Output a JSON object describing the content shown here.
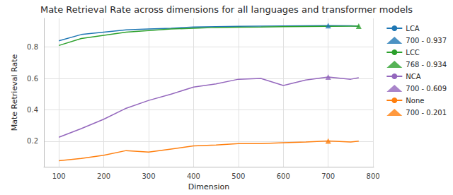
{
  "chart_data": {
    "type": "line",
    "title": "Mate Retrieval Rate across dimensions for all languages and transformer models",
    "x_label": "Dimension",
    "y_label": "Mate Retrieval Rate",
    "x": [
      100,
      150,
      200,
      250,
      300,
      350,
      400,
      450,
      500,
      550,
      600,
      650,
      700,
      750,
      768
    ],
    "xlim": [
      66.6,
      801.4
    ],
    "xticks": [
      100,
      200,
      300,
      400,
      500,
      600,
      700,
      800
    ],
    "ylim": [
      0.037,
      0.983
    ],
    "yticks": [
      0.2,
      0.4,
      0.6,
      0.8
    ],
    "grid": true,
    "legend": "right",
    "series": [
      {
        "name": "LCA",
        "type": "line",
        "color": "#1f77b4",
        "marker": "none",
        "line_style": "solid",
        "values": [
          0.84,
          0.88,
          0.895,
          0.91,
          0.915,
          0.92,
          0.928,
          0.93,
          0.932,
          0.934,
          0.935,
          0.936,
          0.937,
          0.936,
          0.933
        ]
      },
      {
        "name": "700 - 0.937",
        "type": "scatter",
        "color": "#1f77b4",
        "marker": "triangle",
        "x": [
          700
        ],
        "values": [
          0.937
        ]
      },
      {
        "name": "LCC",
        "type": "line",
        "color": "#2ca02c",
        "marker": "none",
        "line_style": "solid",
        "values": [
          0.81,
          0.855,
          0.875,
          0.895,
          0.905,
          0.915,
          0.92,
          0.925,
          0.927,
          0.928,
          0.93,
          0.931,
          0.932,
          0.933,
          0.934
        ]
      },
      {
        "name": "768 - 0.934",
        "type": "scatter",
        "color": "#2ca02c",
        "marker": "triangle",
        "x": [
          768
        ],
        "values": [
          0.934
        ]
      },
      {
        "name": "NCA",
        "type": "line",
        "color": "#9467bd",
        "marker": "none",
        "line_style": "solid",
        "values": [
          0.225,
          0.28,
          0.34,
          0.41,
          0.46,
          0.5,
          0.545,
          0.565,
          0.595,
          0.6,
          0.555,
          0.59,
          0.609,
          0.595,
          0.605
        ]
      },
      {
        "name": "700 - 0.609",
        "type": "scatter",
        "color": "#9467bd",
        "marker": "triangle",
        "x": [
          700
        ],
        "values": [
          0.609
        ]
      },
      {
        "name": "None",
        "type": "line",
        "color": "#ff7f0e",
        "marker": "none",
        "line_style": "solid",
        "values": [
          0.075,
          0.09,
          0.11,
          0.14,
          0.13,
          0.15,
          0.17,
          0.175,
          0.185,
          0.185,
          0.19,
          0.195,
          0.201,
          0.195,
          0.2
        ]
      },
      {
        "name": "700 - 0.201",
        "type": "scatter",
        "color": "#ff7f0e",
        "marker": "triangle",
        "x": [
          700
        ],
        "values": [
          0.201
        ]
      }
    ]
  }
}
